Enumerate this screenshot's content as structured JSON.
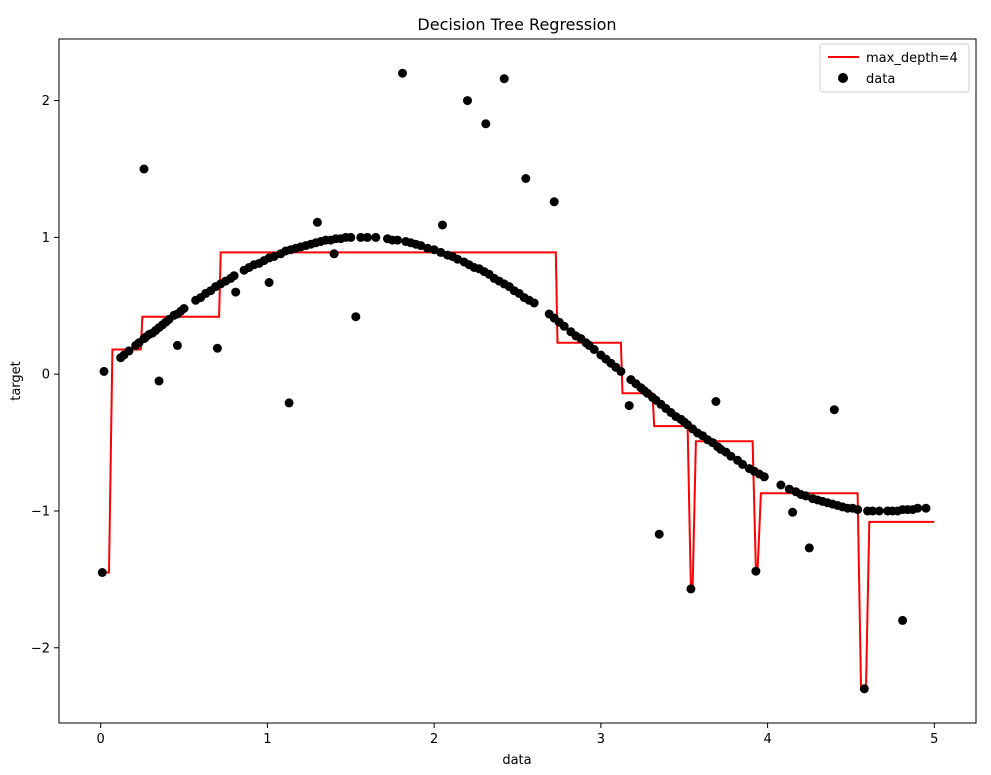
{
  "chart_data": {
    "type": "scatter",
    "title": "Decision Tree Regression",
    "xlabel": "data",
    "ylabel": "target",
    "xlim": [
      -0.25,
      5.25
    ],
    "ylim": [
      -2.55,
      2.45
    ],
    "xticks": [
      0,
      1,
      2,
      3,
      4,
      5
    ],
    "yticks": [
      -2,
      -1,
      0,
      1,
      2
    ],
    "grid": false,
    "legend_position": "top-right",
    "colors": {
      "line": "#ff0000",
      "points": "#000000",
      "axes": "#000000",
      "background": "#ffffff"
    },
    "series": [
      {
        "name": "max_depth=4",
        "kind": "step-line",
        "color": "#ff0000",
        "x": [
          0.0,
          0.05,
          0.07,
          0.24,
          0.25,
          0.71,
          0.72,
          2.73,
          2.74,
          3.12,
          3.13,
          3.31,
          3.32,
          3.52,
          3.54,
          3.55,
          3.57,
          3.91,
          3.93,
          3.94,
          3.96,
          4.54,
          4.56,
          4.59,
          4.61,
          5.0
        ],
        "y": [
          -1.45,
          -1.45,
          0.18,
          0.18,
          0.42,
          0.42,
          0.89,
          0.89,
          0.23,
          0.23,
          -0.14,
          -0.14,
          -0.38,
          -0.38,
          -1.57,
          -1.57,
          -0.49,
          -0.49,
          -1.43,
          -1.43,
          -0.87,
          -0.87,
          -2.29,
          -2.29,
          -1.08,
          -1.08
        ]
      },
      {
        "name": "data",
        "kind": "scatter",
        "color": "#000000",
        "x": [
          0.01,
          0.02,
          0.12,
          0.14,
          0.17,
          0.21,
          0.23,
          0.26,
          0.27,
          0.29,
          0.31,
          0.33,
          0.35,
          0.37,
          0.39,
          0.41,
          0.44,
          0.46,
          0.48,
          0.5,
          0.57,
          0.6,
          0.63,
          0.66,
          0.69,
          0.72,
          0.75,
          0.78,
          0.8,
          0.86,
          0.89,
          0.92,
          0.95,
          0.98,
          1.01,
          1.04,
          1.08,
          1.11,
          1.14,
          1.17,
          1.2,
          1.23,
          1.26,
          1.29,
          1.32,
          1.35,
          1.38,
          1.41,
          1.44,
          1.47,
          1.5,
          1.56,
          1.6,
          1.65,
          1.72,
          1.75,
          1.78,
          1.83,
          1.86,
          1.89,
          1.92,
          1.96,
          2.0,
          2.04,
          2.08,
          2.11,
          2.14,
          2.18,
          2.21,
          2.24,
          2.27,
          2.3,
          2.33,
          2.36,
          2.39,
          2.42,
          2.45,
          2.48,
          2.51,
          2.54,
          2.57,
          2.6,
          2.69,
          2.72,
          2.75,
          2.78,
          2.82,
          2.85,
          2.88,
          2.91,
          2.93,
          2.96,
          3.0,
          3.03,
          3.06,
          3.09,
          3.12,
          3.18,
          3.21,
          3.24,
          3.26,
          3.28,
          3.31,
          3.33,
          3.36,
          3.39,
          3.42,
          3.45,
          3.48,
          3.5,
          3.52,
          3.55,
          3.58,
          3.61,
          3.64,
          3.67,
          3.7,
          3.72,
          3.75,
          3.78,
          3.82,
          3.85,
          3.89,
          3.92,
          3.95,
          3.98,
          4.08,
          4.13,
          4.17,
          4.2,
          4.23,
          4.27,
          4.3,
          4.33,
          4.36,
          4.39,
          4.42,
          4.45,
          4.48,
          4.51,
          4.54,
          4.6,
          4.63,
          4.67,
          4.72,
          4.75,
          4.78,
          4.81,
          4.84,
          4.87,
          4.9,
          4.95,
          0.26,
          0.35,
          0.46,
          0.7,
          0.81,
          1.01,
          1.13,
          1.3,
          1.4,
          1.53,
          1.81,
          2.05,
          2.2,
          2.31,
          2.42,
          2.55,
          2.72,
          3.17,
          3.35,
          3.54,
          3.69,
          3.93,
          4.15,
          4.25,
          4.4,
          4.58,
          4.81
        ],
        "y": [
          -1.45,
          0.02,
          0.12,
          0.14,
          0.17,
          0.21,
          0.23,
          0.26,
          0.27,
          0.29,
          0.3,
          0.32,
          0.34,
          0.36,
          0.38,
          0.4,
          0.43,
          0.44,
          0.46,
          0.48,
          0.54,
          0.56,
          0.59,
          0.61,
          0.64,
          0.66,
          0.68,
          0.7,
          0.72,
          0.76,
          0.78,
          0.8,
          0.81,
          0.83,
          0.85,
          0.86,
          0.88,
          0.9,
          0.91,
          0.92,
          0.93,
          0.94,
          0.95,
          0.96,
          0.97,
          0.98,
          0.98,
          0.99,
          0.99,
          1.0,
          1.0,
          1.0,
          1.0,
          1.0,
          0.99,
          0.98,
          0.98,
          0.97,
          0.96,
          0.95,
          0.94,
          0.92,
          0.91,
          0.89,
          0.87,
          0.86,
          0.84,
          0.82,
          0.8,
          0.78,
          0.77,
          0.75,
          0.73,
          0.7,
          0.68,
          0.66,
          0.64,
          0.61,
          0.59,
          0.56,
          0.54,
          0.52,
          0.44,
          0.41,
          0.38,
          0.35,
          0.31,
          0.28,
          0.26,
          0.23,
          0.21,
          0.18,
          0.14,
          0.11,
          0.08,
          0.05,
          0.02,
          -0.04,
          -0.07,
          -0.1,
          -0.12,
          -0.14,
          -0.17,
          -0.19,
          -0.22,
          -0.25,
          -0.28,
          -0.31,
          -0.33,
          -0.35,
          -0.37,
          -0.4,
          -0.43,
          -0.45,
          -0.48,
          -0.5,
          -0.53,
          -0.55,
          -0.57,
          -0.6,
          -0.63,
          -0.66,
          -0.69,
          -0.71,
          -0.73,
          -0.75,
          -0.81,
          -0.84,
          -0.86,
          -0.88,
          -0.89,
          -0.91,
          -0.92,
          -0.93,
          -0.94,
          -0.95,
          -0.96,
          -0.97,
          -0.98,
          -0.98,
          -0.99,
          -1.0,
          -1.0,
          -1.0,
          -1.0,
          -1.0,
          -1.0,
          -0.99,
          -0.99,
          -0.99,
          -0.98,
          -0.98,
          1.5,
          -0.05,
          0.21,
          0.19,
          0.6,
          0.67,
          -0.21,
          1.11,
          0.88,
          0.42,
          2.2,
          1.09,
          2.0,
          1.83,
          2.16,
          1.43,
          1.26,
          -0.23,
          -1.17,
          -1.57,
          -0.2,
          -1.44,
          -1.01,
          -1.27,
          -0.26,
          -2.3,
          -1.8
        ]
      }
    ]
  }
}
